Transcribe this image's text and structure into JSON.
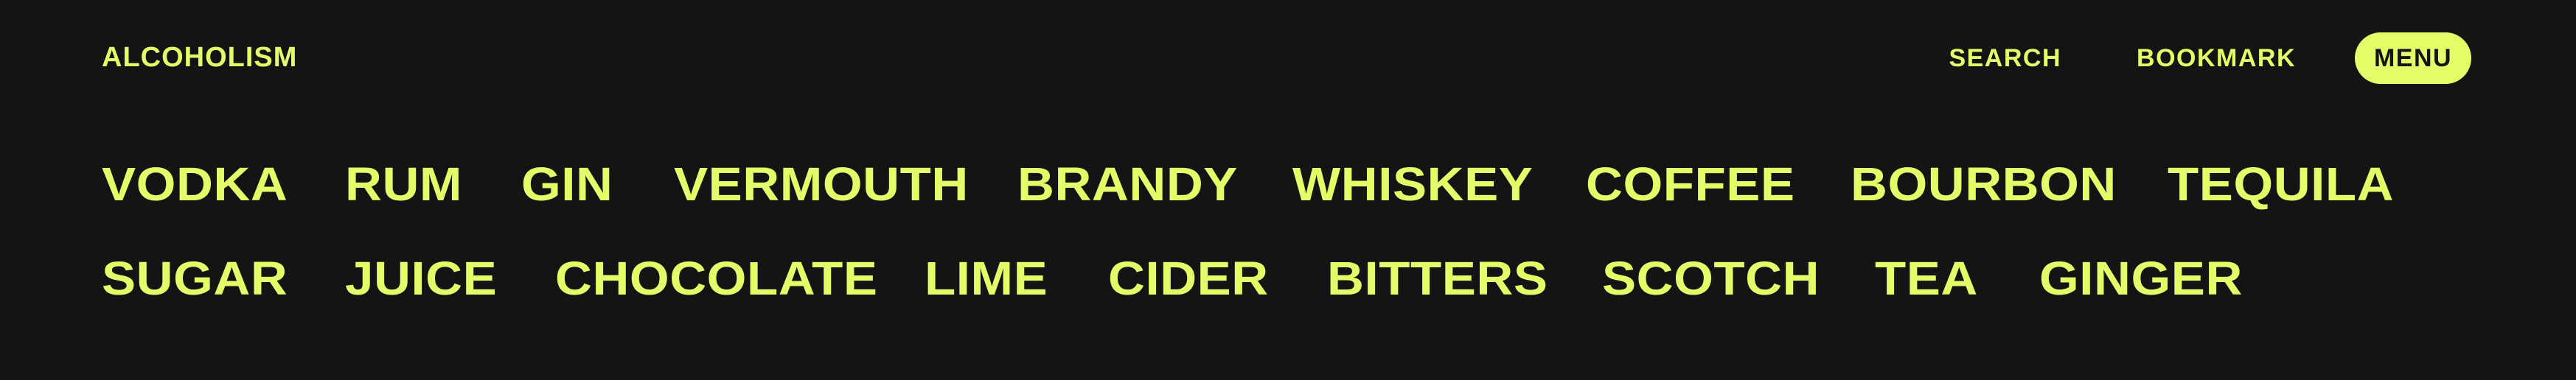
{
  "header": {
    "brand": "ALCOHOLISM",
    "search_label": "SEARCH",
    "bookmark_label": "BOOKMARK",
    "menu_label": "MENU"
  },
  "colors": {
    "background": "#141414",
    "accent": "#e3fc67"
  },
  "tags": {
    "row1": [
      "VODKA",
      "RUM",
      "GIN",
      "VERMOUTH",
      "BRANDY",
      "WHISKEY",
      "COFFEE",
      "BOURBON",
      "TEQUILA"
    ],
    "row2": [
      "SUGAR",
      "JUICE",
      "CHOCOLATE",
      "LIME",
      "CIDER",
      "BITTERS",
      "SCOTCH",
      "TEA",
      "GINGER"
    ]
  }
}
